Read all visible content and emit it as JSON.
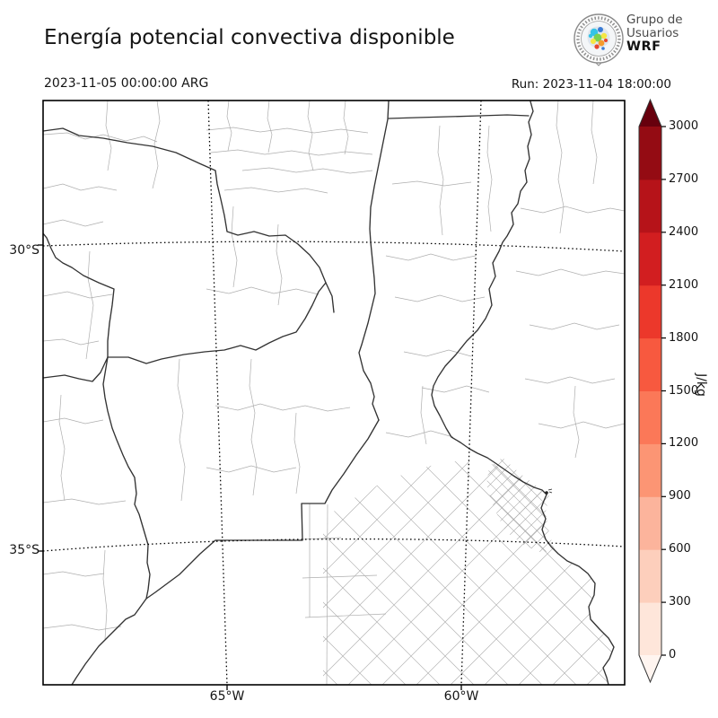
{
  "figure": {
    "title": "Energía potencial convectiva disponible",
    "valid_time": "2023-11-05 00:00:00 ARG",
    "run_label": "Run: 2023-11-04 18:00:00"
  },
  "logo": {
    "line1": "Grupo de",
    "line2": "Usuarios",
    "line3": "WRF"
  },
  "axes": {
    "y_ticks": [
      "30°S",
      "35°S"
    ],
    "x_ticks": [
      "65°W",
      "60°W"
    ]
  },
  "chart_data": {
    "type": "heatmap",
    "title": "Energía potencial convectiva disponible",
    "variable": "CAPE (convective available potential energy)",
    "unit": "J/kg",
    "valid_time": "2023-11-05 00:00:00 ARG",
    "model_run": "2023-11-04 18:00:00",
    "region": {
      "lat_ticks": [
        "30°S",
        "35°S"
      ],
      "lon_ticks": [
        "65°W",
        "60°W"
      ],
      "description": "Central Argentina with province and department boundaries"
    },
    "colorbar": {
      "label": "J/kg",
      "levels": [
        0,
        300,
        600,
        900,
        1200,
        1500,
        1800,
        2100,
        2400,
        2700,
        3000
      ],
      "colors": [
        "#fee6da",
        "#fdcfbc",
        "#fcb49c",
        "#fc9574",
        "#fb7858",
        "#f7593f",
        "#ec382b",
        "#d21e20",
        "#b61319",
        "#940b13"
      ],
      "under_color": "#fff5f0",
      "over_color": "#67000d"
    },
    "note": "No shaded CAPE values visible on map (field ~0 J/kg over domain)"
  }
}
